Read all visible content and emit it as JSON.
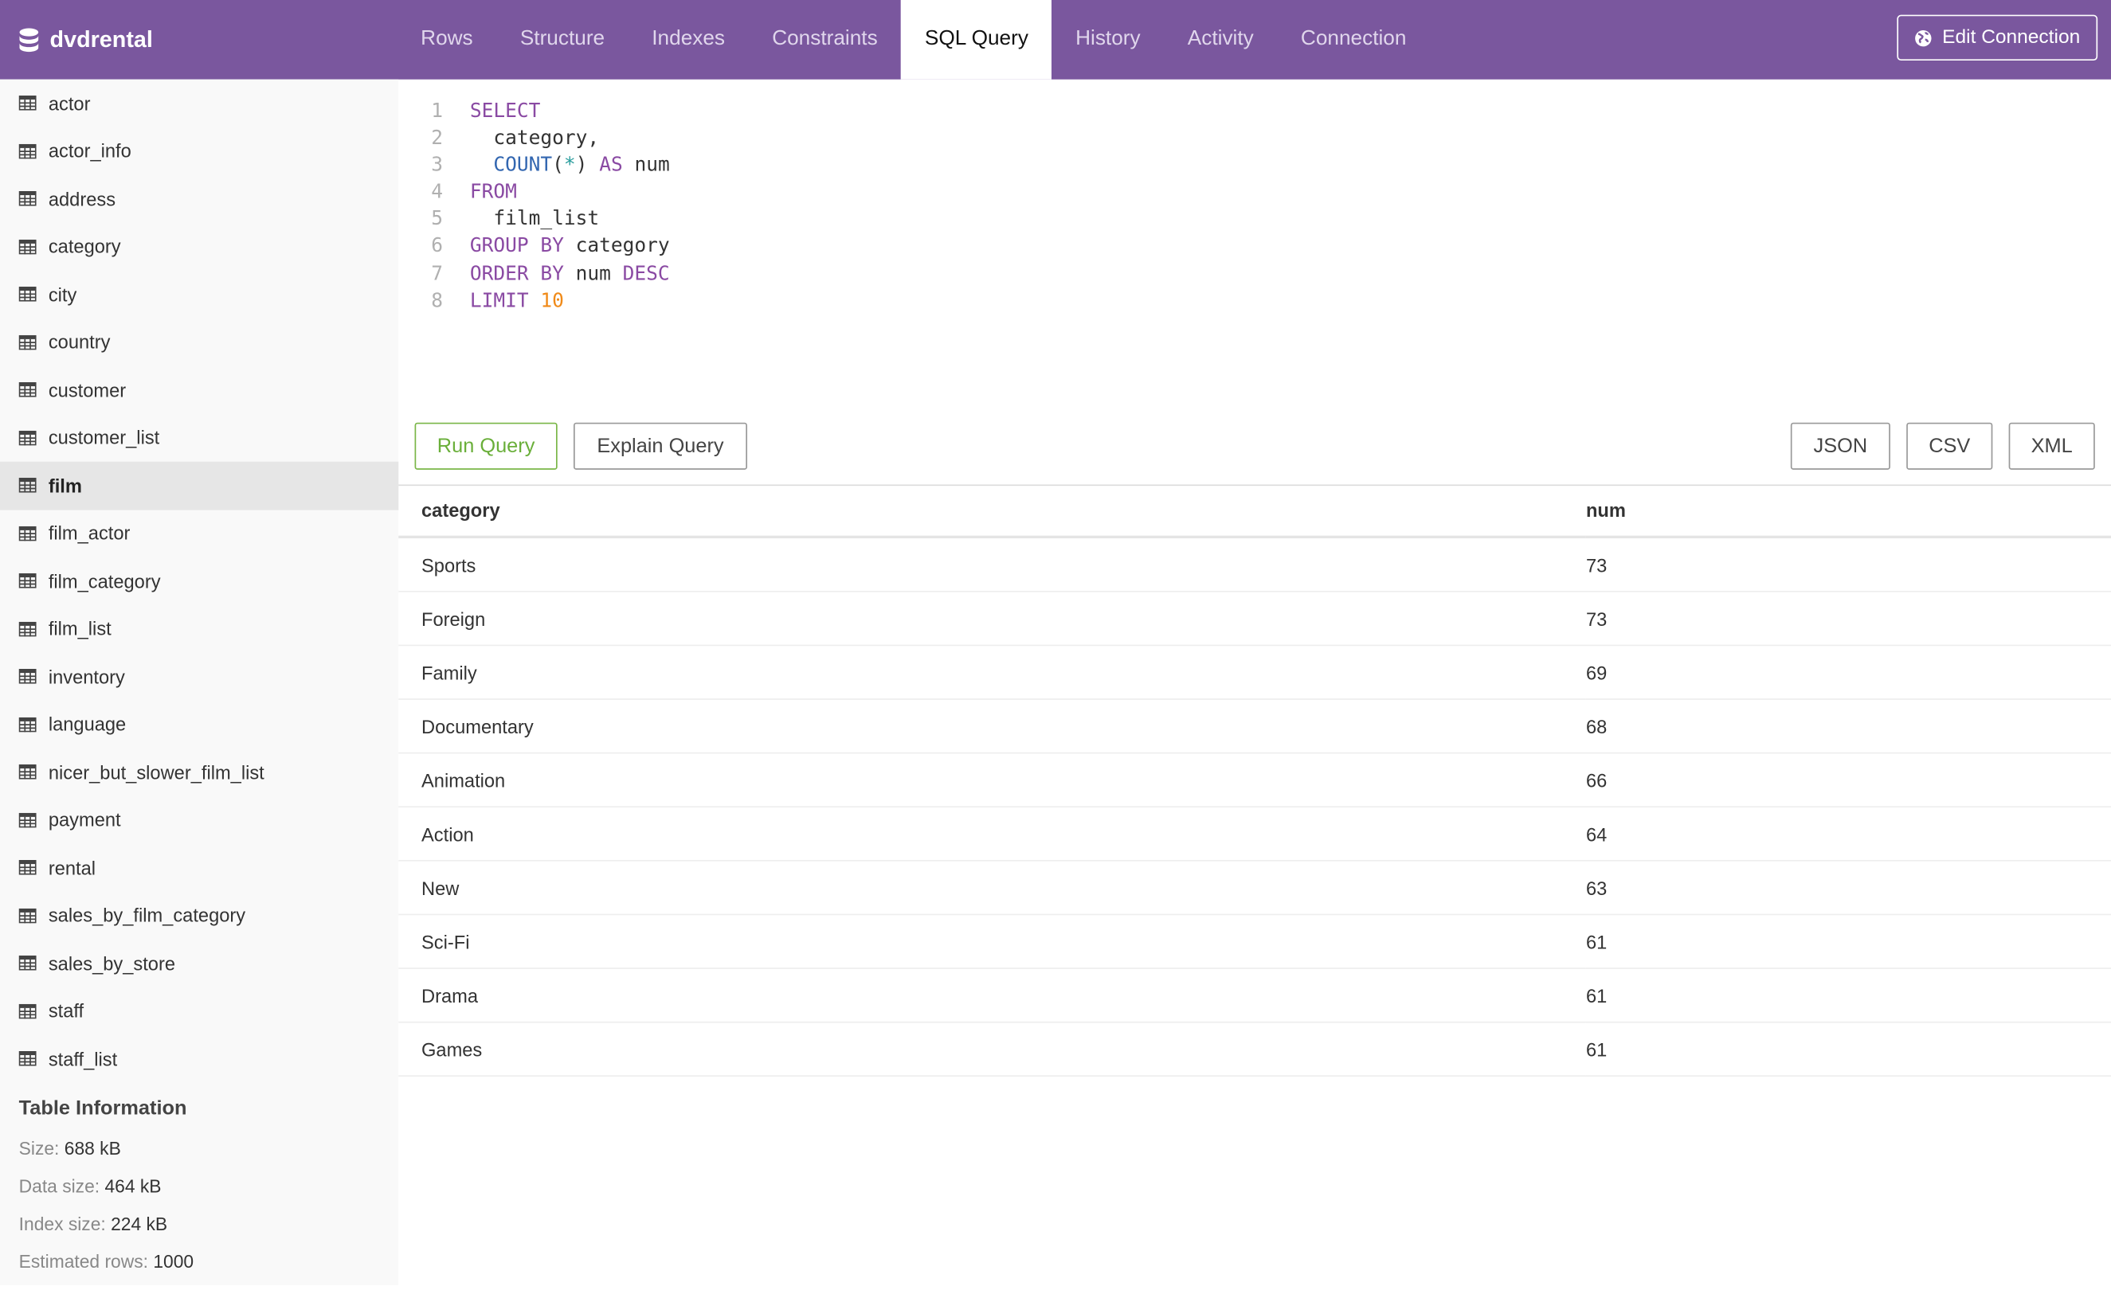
{
  "app": {
    "db_name": "dvdrental",
    "brand_color": "#7a579e"
  },
  "tabs": [
    {
      "label": "Rows",
      "active": false
    },
    {
      "label": "Structure",
      "active": false
    },
    {
      "label": "Indexes",
      "active": false
    },
    {
      "label": "Constraints",
      "active": false
    },
    {
      "label": "SQL Query",
      "active": true
    },
    {
      "label": "History",
      "active": false
    },
    {
      "label": "Activity",
      "active": false
    },
    {
      "label": "Connection",
      "active": false
    }
  ],
  "edit_connection": {
    "label": "Edit Connection",
    "icon": "globe-icon"
  },
  "sidebar": {
    "items": [
      "actor",
      "actor_info",
      "address",
      "category",
      "city",
      "country",
      "customer",
      "customer_list",
      "film",
      "film_actor",
      "film_category",
      "film_list",
      "inventory",
      "language",
      "nicer_but_slower_film_list",
      "payment",
      "rental",
      "sales_by_film_category",
      "sales_by_store",
      "staff",
      "staff_list"
    ],
    "selected": "film",
    "info": {
      "title": "Table Information",
      "rows": [
        {
          "label": "Size:",
          "value": "688 kB"
        },
        {
          "label": "Data size:",
          "value": "464 kB"
        },
        {
          "label": "Index size:",
          "value": "224 kB"
        },
        {
          "label": "Estimated rows:",
          "value": "1000"
        }
      ]
    }
  },
  "editor": {
    "lines": [
      [
        {
          "t": "SELECT",
          "c": "kw"
        }
      ],
      [
        {
          "t": "  category,",
          "c": ""
        }
      ],
      [
        {
          "t": "  ",
          "c": ""
        },
        {
          "t": "COUNT",
          "c": "fn"
        },
        {
          "t": "(",
          "c": ""
        },
        {
          "t": "*",
          "c": "op"
        },
        {
          "t": ") ",
          "c": ""
        },
        {
          "t": "AS",
          "c": "kw"
        },
        {
          "t": " num",
          "c": ""
        }
      ],
      [
        {
          "t": "FROM",
          "c": "kw"
        }
      ],
      [
        {
          "t": "  film_list",
          "c": ""
        }
      ],
      [
        {
          "t": "GROUP BY",
          "c": "kw"
        },
        {
          "t": " category",
          "c": ""
        }
      ],
      [
        {
          "t": "ORDER BY",
          "c": "kw"
        },
        {
          "t": " num ",
          "c": ""
        },
        {
          "t": "DESC",
          "c": "kw"
        }
      ],
      [
        {
          "t": "LIMIT",
          "c": "kw"
        },
        {
          "t": " ",
          "c": ""
        },
        {
          "t": "10",
          "c": "num"
        }
      ]
    ]
  },
  "toolbar": {
    "run": "Run Query",
    "explain": "Explain Query",
    "json": "JSON",
    "csv": "CSV",
    "xml": "XML"
  },
  "results": {
    "columns": [
      "category",
      "num"
    ],
    "rows": [
      [
        "Sports",
        "73"
      ],
      [
        "Foreign",
        "73"
      ],
      [
        "Family",
        "69"
      ],
      [
        "Documentary",
        "68"
      ],
      [
        "Animation",
        "66"
      ],
      [
        "Action",
        "64"
      ],
      [
        "New",
        "63"
      ],
      [
        "Sci-Fi",
        "61"
      ],
      [
        "Drama",
        "61"
      ],
      [
        "Games",
        "61"
      ]
    ]
  }
}
